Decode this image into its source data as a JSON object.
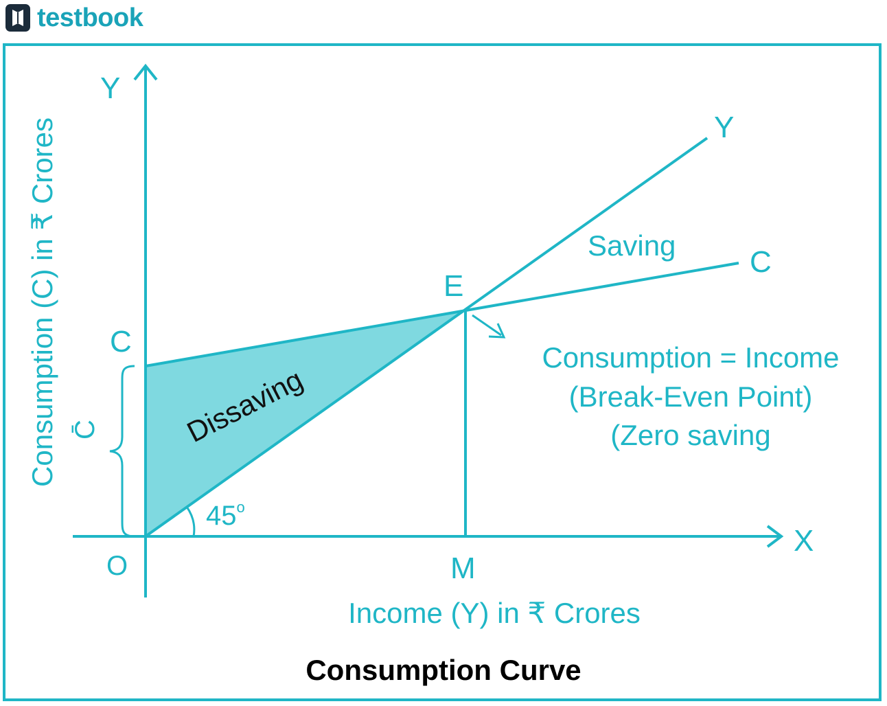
{
  "brand": {
    "logo_text": "testbook"
  },
  "colors": {
    "accent": "#1fb6c6",
    "fill": "#7fd9e0",
    "caption": "#000000"
  },
  "diagram": {
    "y_axis_label": "Y",
    "x_axis_label": "X",
    "origin_label": "O",
    "m_label": "M",
    "e_label": "E",
    "c_intercept_label": "C",
    "cbar_label": "C̄",
    "line_y_label": "Y",
    "line_c_label": "C",
    "saving_label": "Saving",
    "dissaving_label": "Dissaving",
    "angle_label": "45",
    "angle_degree": "o",
    "breakeven_line1": "Consumption = Income",
    "breakeven_line2": "(Break-Even Point)",
    "breakeven_line3": "(Zero saving",
    "y_axis_title": "Consumption (C) in ₹ Crores",
    "x_axis_title": "Income (Y) in ₹ Crores",
    "caption": "Consumption Curve"
  }
}
